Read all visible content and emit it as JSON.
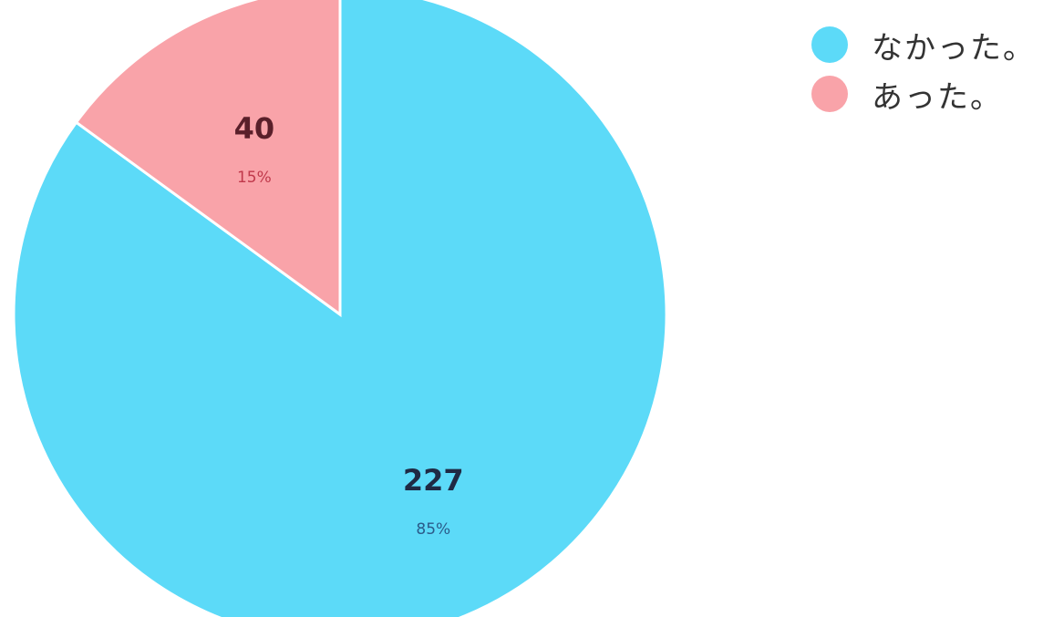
{
  "chart_data": {
    "type": "pie",
    "categories": [
      "なかった。",
      "あった。"
    ],
    "values": [
      227,
      40
    ],
    "percent_labels": [
      "85%",
      "15%"
    ],
    "colors": [
      "#5CDAF8",
      "#F9A3A9"
    ],
    "count_label_colors": [
      "#1f2a44",
      "#5a1f2a"
    ],
    "percent_label_colors": [
      "#2b5b8a",
      "#c0394b"
    ],
    "start_angle_deg": 0,
    "direction": "clockwise",
    "legend_position": "top-right"
  },
  "legend": {
    "items": [
      {
        "label": "なかった。",
        "color": "#5CDAF8"
      },
      {
        "label": "あった。",
        "color": "#F9A3A9"
      }
    ]
  }
}
